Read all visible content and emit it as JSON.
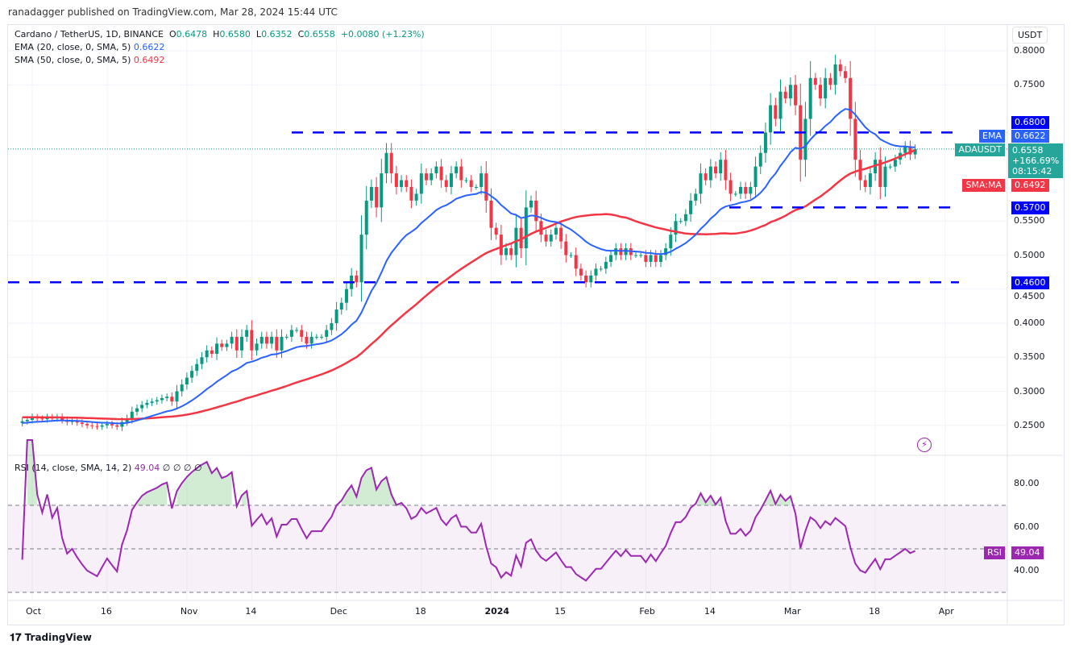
{
  "header": {
    "published": "ranadagger published on TradingView.com, Mar 28, 2024 15:44 UTC"
  },
  "legend": {
    "symbol": "Cardano / TetherUS, 1D, BINANCE",
    "o_label": "O",
    "o": "0.6478",
    "h_label": "H",
    "h": "0.6580",
    "l_label": "L",
    "l": "0.6352",
    "c_label": "C",
    "c": "0.6558",
    "change": "+0.0080 (+1.23%)",
    "ema": "EMA (20, close, 0, SMA, 5)",
    "ema_val": "0.6622",
    "sma": "SMA (50, close, 0, SMA, 5)",
    "sma_val": "0.6492",
    "rsi": "RSI (14, close, SMA, 14, 2)",
    "rsi_val": "49.04",
    "rsi_extra": "∅ ∅ ∅ ∅"
  },
  "currency": "USDT",
  "tags": {
    "r680": "0.6800",
    "ema_name": "EMA",
    "ema": "0.6622",
    "sym": "ADAUSDT",
    "price": "0.6558",
    "pct": "+166.69%",
    "countdown": "08:15:42",
    "sma_name": "SMA:MA",
    "sma": "0.6492",
    "r570": "0.5700",
    "r460": "0.4600",
    "rsi_name": "RSI",
    "rsi": "49.04"
  },
  "colors": {
    "up": "#089981",
    "down": "#f23645",
    "ema": "#2962ff",
    "sma": "#f23645",
    "levels": "#0000ff",
    "rsi": "#9c27b0"
  },
  "branding": "TradingView",
  "chart_data": {
    "type": "candlestick",
    "start_date": "2023-09-29",
    "closes": [
      0.256,
      0.258,
      0.262,
      0.26,
      0.259,
      0.262,
      0.26,
      0.262,
      0.258,
      0.255,
      0.256,
      0.254,
      0.252,
      0.25,
      0.249,
      0.248,
      0.25,
      0.252,
      0.25,
      0.248,
      0.255,
      0.26,
      0.27,
      0.275,
      0.28,
      0.283,
      0.285,
      0.287,
      0.29,
      0.292,
      0.285,
      0.3,
      0.31,
      0.32,
      0.33,
      0.34,
      0.35,
      0.36,
      0.355,
      0.37,
      0.365,
      0.37,
      0.38,
      0.36,
      0.38,
      0.39,
      0.36,
      0.37,
      0.38,
      0.37,
      0.38,
      0.36,
      0.38,
      0.38,
      0.39,
      0.39,
      0.38,
      0.37,
      0.38,
      0.38,
      0.38,
      0.39,
      0.4,
      0.42,
      0.43,
      0.45,
      0.47,
      0.46,
      0.53,
      0.58,
      0.6,
      0.57,
      0.62,
      0.65,
      0.62,
      0.6,
      0.61,
      0.6,
      0.58,
      0.59,
      0.62,
      0.61,
      0.62,
      0.63,
      0.61,
      0.6,
      0.62,
      0.63,
      0.61,
      0.61,
      0.6,
      0.6,
      0.62,
      0.58,
      0.54,
      0.53,
      0.5,
      0.51,
      0.5,
      0.54,
      0.51,
      0.57,
      0.58,
      0.55,
      0.53,
      0.52,
      0.53,
      0.54,
      0.52,
      0.5,
      0.5,
      0.48,
      0.47,
      0.46,
      0.47,
      0.48,
      0.48,
      0.49,
      0.5,
      0.51,
      0.5,
      0.51,
      0.5,
      0.5,
      0.5,
      0.49,
      0.5,
      0.49,
      0.5,
      0.51,
      0.53,
      0.55,
      0.55,
      0.56,
      0.58,
      0.59,
      0.62,
      0.61,
      0.63,
      0.62,
      0.64,
      0.61,
      0.59,
      0.59,
      0.6,
      0.59,
      0.6,
      0.63,
      0.65,
      0.68,
      0.72,
      0.7,
      0.74,
      0.73,
      0.75,
      0.72,
      0.64,
      0.7,
      0.76,
      0.75,
      0.73,
      0.76,
      0.75,
      0.78,
      0.77,
      0.76,
      0.7,
      0.64,
      0.61,
      0.6,
      0.62,
      0.64,
      0.6,
      0.63,
      0.63,
      0.64,
      0.65,
      0.66,
      0.6478,
      0.6558
    ],
    "price_ticks": [
      "0.8000",
      "0.7500",
      "0.5500",
      "0.5000",
      "0.4500",
      "0.4000",
      "0.3500",
      "0.3000",
      "0.2500"
    ],
    "x_ticks": [
      {
        "label": "Oct",
        "date": "2023-10-01"
      },
      {
        "label": "16",
        "date": "2023-10-16"
      },
      {
        "label": "Nov",
        "date": "2023-11-01"
      },
      {
        "label": "14",
        "date": "2023-11-14"
      },
      {
        "label": "Dec",
        "date": "2023-12-01"
      },
      {
        "label": "18",
        "date": "2023-12-18"
      },
      {
        "label": "2024",
        "date": "2024-01-01"
      },
      {
        "label": "15",
        "date": "2024-01-15"
      },
      {
        "label": "Feb",
        "date": "2024-02-01"
      },
      {
        "label": "14",
        "date": "2024-02-14"
      },
      {
        "label": "Mar",
        "date": "2024-03-01"
      },
      {
        "label": "18",
        "date": "2024-03-18"
      },
      {
        "label": "Apr",
        "date": "2024-04-01"
      }
    ],
    "levels": [
      0.68,
      0.57,
      0.46
    ],
    "rsi_ticks": [
      "80.00",
      "60.00",
      "40.00"
    ],
    "rsi_band": [
      30,
      70
    ],
    "indicators": [
      "EMA 20",
      "SMA 50",
      "RSI 14"
    ]
  }
}
